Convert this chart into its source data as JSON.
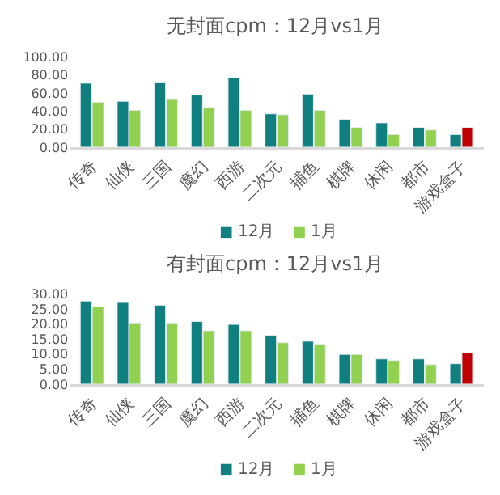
{
  "chart_data": [
    {
      "type": "bar",
      "title": "无封面cpm：12月vs1月",
      "categories": [
        "传奇",
        "仙侠",
        "三国",
        "魔幻",
        "西游",
        "二次元",
        "捕鱼",
        "棋牌",
        "休闲",
        "都市",
        "游戏盒子"
      ],
      "series": [
        {
          "name": "12月",
          "color": "#0f7f7f",
          "values": [
            71,
            51,
            72,
            58,
            77,
            37,
            59,
            31,
            27,
            22,
            14
          ]
        },
        {
          "name": "1月",
          "color": "#92d050",
          "colors": [
            "#92d050",
            "#92d050",
            "#92d050",
            "#92d050",
            "#92d050",
            "#92d050",
            "#92d050",
            "#92d050",
            "#92d050",
            "#92d050",
            "#c00000"
          ],
          "values": [
            50,
            41,
            53,
            44,
            41,
            36,
            41,
            22,
            14,
            19,
            22
          ]
        }
      ],
      "ylim": [
        0,
        100
      ],
      "yticks": [
        {
          "value": 0,
          "label": "0.00"
        },
        {
          "value": 20,
          "label": "20.00"
        },
        {
          "value": 40,
          "label": "40.00"
        },
        {
          "value": 60,
          "label": "60.00"
        },
        {
          "value": 80,
          "label": "80.00"
        },
        {
          "value": 100,
          "label": "100.00"
        }
      ],
      "legend": "bottom"
    },
    {
      "type": "bar",
      "title": "有封面cpm：12月vs1月",
      "categories": [
        "传奇",
        "仙侠",
        "三国",
        "魔幻",
        "西游",
        "二次元",
        "捕鱼",
        "棋牌",
        "休闲",
        "都市",
        "游戏盒子"
      ],
      "series": [
        {
          "name": "12月",
          "color": "#0f7f7f",
          "values": [
            27.7,
            27.2,
            26.3,
            20.9,
            19.9,
            16.2,
            14.3,
            9.9,
            8.4,
            8.4,
            6.8
          ]
        },
        {
          "name": "1月",
          "color": "#92d050",
          "colors": [
            "#92d050",
            "#92d050",
            "#92d050",
            "#92d050",
            "#92d050",
            "#92d050",
            "#92d050",
            "#92d050",
            "#92d050",
            "#92d050",
            "#c00000"
          ],
          "values": [
            25.8,
            20.4,
            20.4,
            17.8,
            17.8,
            13.8,
            13.3,
            9.9,
            7.9,
            6.5,
            10.5
          ]
        }
      ],
      "ylim": [
        0,
        30
      ],
      "yticks": [
        {
          "value": 0,
          "label": "0.00"
        },
        {
          "value": 5,
          "label": "5.00"
        },
        {
          "value": 10,
          "label": "10.00"
        },
        {
          "value": 15,
          "label": "15.00"
        },
        {
          "value": 20,
          "label": "20.00"
        },
        {
          "value": 25,
          "label": "25.00"
        },
        {
          "value": 30,
          "label": "30.00"
        }
      ],
      "legend": "bottom"
    }
  ]
}
